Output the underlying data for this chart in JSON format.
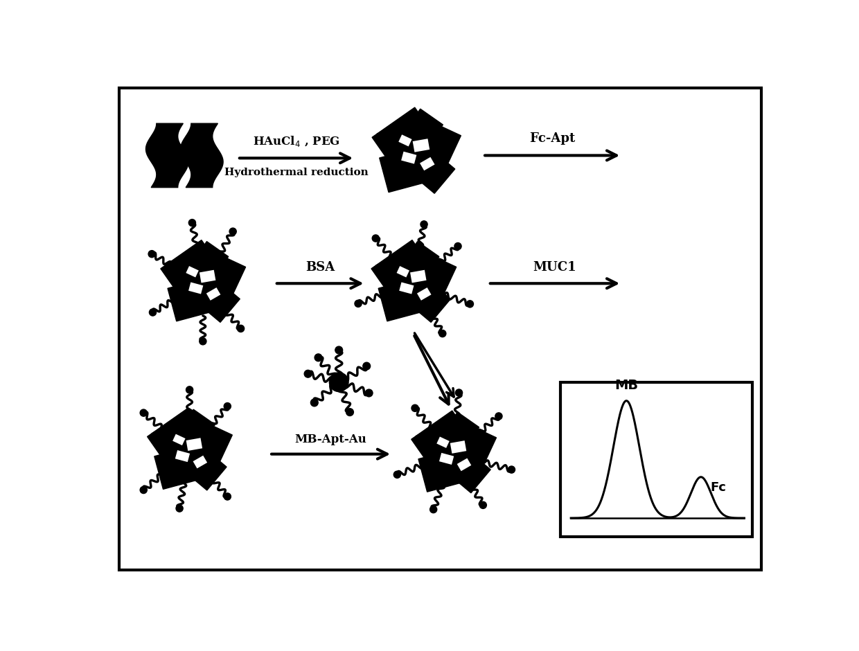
{
  "bg_color": "#ffffff",
  "border_color": "#000000",
  "fig_width": 12.4,
  "fig_height": 9.4,
  "label_haaucl4_line1": "HAuCl$_4$ , PEG",
  "label_haaucl4_line2": "Hydrothermal reduction",
  "label_fcapt": "Fc-Apt",
  "label_bsa": "BSA",
  "label_muc1": "MUC1",
  "label_mb": "MB-Apt-Au",
  "peak_mb": "MB",
  "peak_fc": "Fc"
}
